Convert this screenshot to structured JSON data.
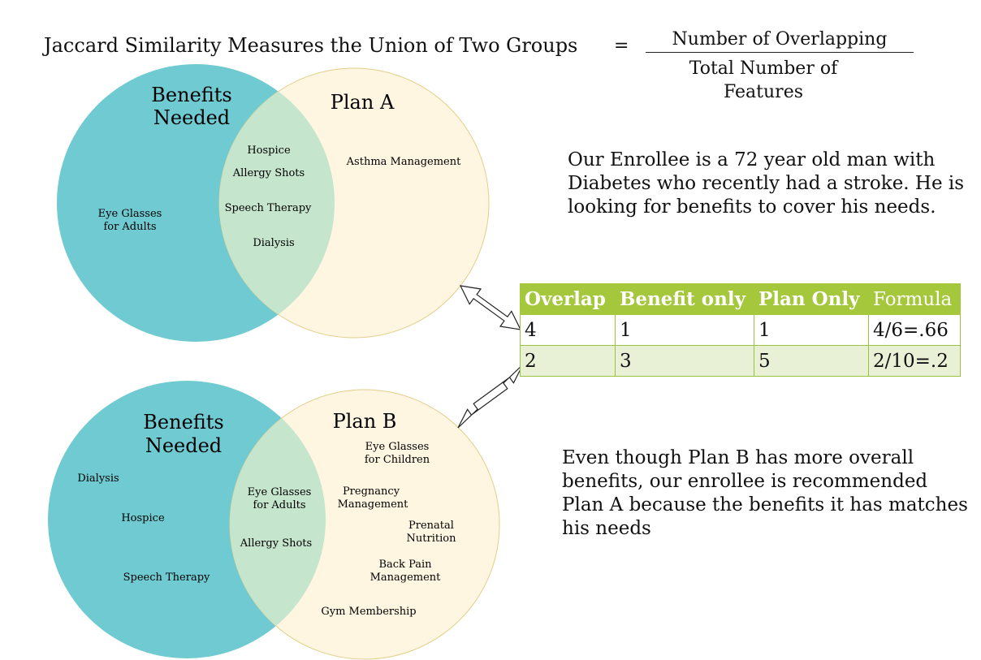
{
  "header": {
    "title": "Jaccard Similarity Measures the Union of Two Groups",
    "equals": "=",
    "numerator": "Number of Overlapping",
    "denominator_line1": "Total Number of",
    "denominator_line2": "Features"
  },
  "colors": {
    "benefits_circle": "#6fcbd1",
    "plan_circle": "#fef6e0",
    "overlap": "#c5e5cd",
    "table_header": "#a5c73c",
    "table_alt_row": "#e8f0d6"
  },
  "venn_a": {
    "left_label_1": "Benefits",
    "left_label_2": "Needed",
    "right_label": "Plan A",
    "left_items": [
      "Eye Glasses",
      "for Adults"
    ],
    "overlap_items": [
      "Hospice",
      "Allergy Shots",
      "Speech Therapy",
      "Dialysis"
    ],
    "right_items": [
      "Asthma Management"
    ]
  },
  "venn_b": {
    "left_label_1": "Benefits",
    "left_label_2": "Needed",
    "right_label": "Plan B",
    "left_items": [
      "Dialysis",
      "Hospice",
      "Speech Therapy"
    ],
    "overlap_items": [
      "Eye Glasses",
      "for Adults",
      "Allergy Shots"
    ],
    "right_items": [
      "Eye Glasses",
      "for Children",
      "Pregnancy",
      "Management",
      "Prenatal",
      "Nutrition",
      "Back Pain",
      "Management",
      "Gym Membership"
    ]
  },
  "enrollee_text": "Our Enrollee is a 72 year old man with Diabetes who recently had a stroke. He is looking for benefits to cover his needs.",
  "conclusion_text": "Even though Plan B has more overall benefits, our enrollee is recommended Plan A because the benefits it has matches his needs",
  "table": {
    "headers": [
      "Overlap",
      "Benefit only",
      "Plan Only",
      "Formula"
    ],
    "rows": [
      [
        "4",
        "1",
        "1",
        "4/6=.66"
      ],
      [
        "2",
        "3",
        "5",
        "2/10=.2"
      ]
    ]
  }
}
